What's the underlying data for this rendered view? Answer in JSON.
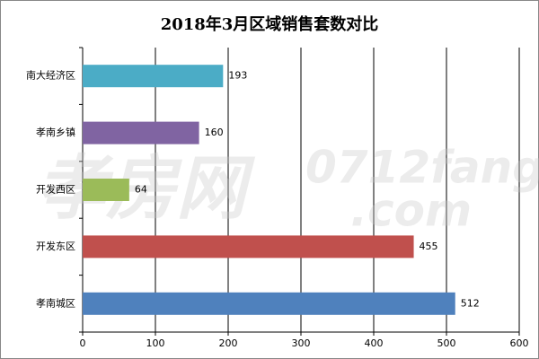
{
  "chart_data": {
    "type": "hbar",
    "title": "2018年3月区域销售套数对比",
    "categories": [
      "南大经济区",
      "孝南乡镇",
      "开发西区",
      "开发东区",
      "孝南城区"
    ],
    "values": [
      193,
      160,
      64,
      455,
      512
    ],
    "colors": [
      "#4bacc6",
      "#8064a2",
      "#9bbb59",
      "#c0504d",
      "#4f81bd"
    ],
    "xlim": [
      0,
      600
    ],
    "xticks": [
      0,
      100,
      200,
      300,
      400,
      500,
      600
    ],
    "grid": true,
    "watermark": [
      "孝房网",
      "0712fang",
      ".com"
    ]
  }
}
